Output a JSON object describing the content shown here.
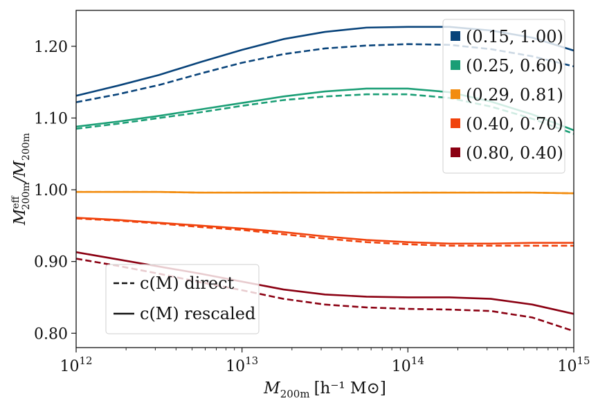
{
  "chart_data": {
    "type": "line",
    "title": "",
    "xlabel": "M_200m [h^-1 M_⊙]",
    "ylabel": "M^eff_200m / M_200m",
    "xscale": "log",
    "xlim": [
      1000000000000.0,
      1000000000000000.0
    ],
    "ylim": [
      0.78,
      1.25
    ],
    "x_tick_values": [
      1000000000000.0,
      10000000000000.0,
      100000000000000.0,
      1000000000000000.0
    ],
    "x_tick_labels": [
      {
        "base": "10",
        "exp": "12"
      },
      {
        "base": "10",
        "exp": "13"
      },
      {
        "base": "10",
        "exp": "14"
      },
      {
        "base": "10",
        "exp": "15"
      }
    ],
    "y_tick_values": [
      0.8,
      0.9,
      1.0,
      1.1,
      1.2
    ],
    "y_tick_labels": [
      "0.80",
      "0.90",
      "1.00",
      "1.10",
      "1.20"
    ],
    "x_axis_label_main": "M",
    "x_axis_label_sub": "200m",
    "x_axis_label_units": "[h⁻¹ M⊙]",
    "y_axis_label_num": "M",
    "y_axis_label_num_sup": "eff",
    "y_axis_label_num_sub": "200m",
    "y_axis_label_den": "/M",
    "y_axis_label_den_sub": "200m",
    "log10_x": [
      12.0,
      12.25,
      12.5,
      12.75,
      13.0,
      13.25,
      13.5,
      13.75,
      14.0,
      14.25,
      14.5,
      14.75,
      15.0
    ],
    "series": [
      {
        "name": "(0.15, 1.00)",
        "color": "#08437a",
        "style": "solid",
        "values": [
          1.131,
          1.145,
          1.16,
          1.178,
          1.195,
          1.21,
          1.22,
          1.226,
          1.227,
          1.227,
          1.222,
          1.212,
          1.194
        ]
      },
      {
        "name": "(0.15, 1.00)",
        "color": "#08437a",
        "style": "dashed",
        "values": [
          1.122,
          1.133,
          1.146,
          1.162,
          1.177,
          1.189,
          1.197,
          1.201,
          1.203,
          1.202,
          1.196,
          1.186,
          1.172
        ]
      },
      {
        "name": "(0.25, 0.60)",
        "color": "#1a9e75",
        "style": "solid",
        "values": [
          1.088,
          1.095,
          1.103,
          1.112,
          1.121,
          1.13,
          1.137,
          1.141,
          1.141,
          1.136,
          1.123,
          1.105,
          1.083
        ]
      },
      {
        "name": "(0.25, 0.60)",
        "color": "#1a9e75",
        "style": "dashed",
        "values": [
          1.085,
          1.092,
          1.1,
          1.108,
          1.117,
          1.125,
          1.13,
          1.133,
          1.133,
          1.128,
          1.116,
          1.099,
          1.078
        ]
      },
      {
        "name": "(0.29, 0.81)",
        "color": "#f28c0f",
        "style": "solid",
        "values": [
          0.997,
          0.997,
          0.997,
          0.996,
          0.996,
          0.996,
          0.996,
          0.996,
          0.996,
          0.996,
          0.996,
          0.996,
          0.995
        ]
      },
      {
        "name": "(0.29, 0.81)",
        "color": "#f28c0f",
        "style": "dashed",
        "values": [
          0.997,
          0.997,
          0.997,
          0.996,
          0.996,
          0.996,
          0.996,
          0.996,
          0.996,
          0.996,
          0.996,
          0.996,
          0.995
        ]
      },
      {
        "name": "(0.40, 0.70)",
        "color": "#f0420c",
        "style": "solid",
        "values": [
          0.961,
          0.958,
          0.954,
          0.95,
          0.946,
          0.941,
          0.935,
          0.93,
          0.927,
          0.925,
          0.925,
          0.926,
          0.926
        ]
      },
      {
        "name": "(0.40, 0.70)",
        "color": "#f0420c",
        "style": "dashed",
        "values": [
          0.96,
          0.957,
          0.953,
          0.948,
          0.944,
          0.938,
          0.932,
          0.927,
          0.924,
          0.922,
          0.922,
          0.922,
          0.922
        ]
      },
      {
        "name": "(0.80, 0.40)",
        "color": "#8b0012",
        "style": "solid",
        "values": [
          0.913,
          0.903,
          0.893,
          0.883,
          0.872,
          0.861,
          0.854,
          0.851,
          0.85,
          0.85,
          0.848,
          0.84,
          0.827
        ]
      },
      {
        "name": "(0.80, 0.40)",
        "color": "#8b0012",
        "style": "dashed",
        "values": [
          0.904,
          0.894,
          0.883,
          0.871,
          0.86,
          0.848,
          0.84,
          0.836,
          0.834,
          0.833,
          0.831,
          0.822,
          0.803
        ]
      }
    ],
    "legend_params": {
      "position": "top-right",
      "entries": [
        {
          "label": "(0.15, 1.00)",
          "color": "#08437a"
        },
        {
          "label": "(0.25, 0.60)",
          "color": "#1a9e75"
        },
        {
          "label": "(0.29, 0.81)",
          "color": "#f28c0f"
        },
        {
          "label": "(0.40, 0.70)",
          "color": "#f0420c"
        },
        {
          "label": "(0.80, 0.40)",
          "color": "#8b0012"
        }
      ]
    },
    "legend_style": {
      "position": "bottom-left",
      "entries": [
        {
          "label": "c(M) direct",
          "style": "dashed",
          "color": "#111111"
        },
        {
          "label": "c(M) rescaled",
          "style": "solid",
          "color": "#111111"
        }
      ]
    }
  }
}
